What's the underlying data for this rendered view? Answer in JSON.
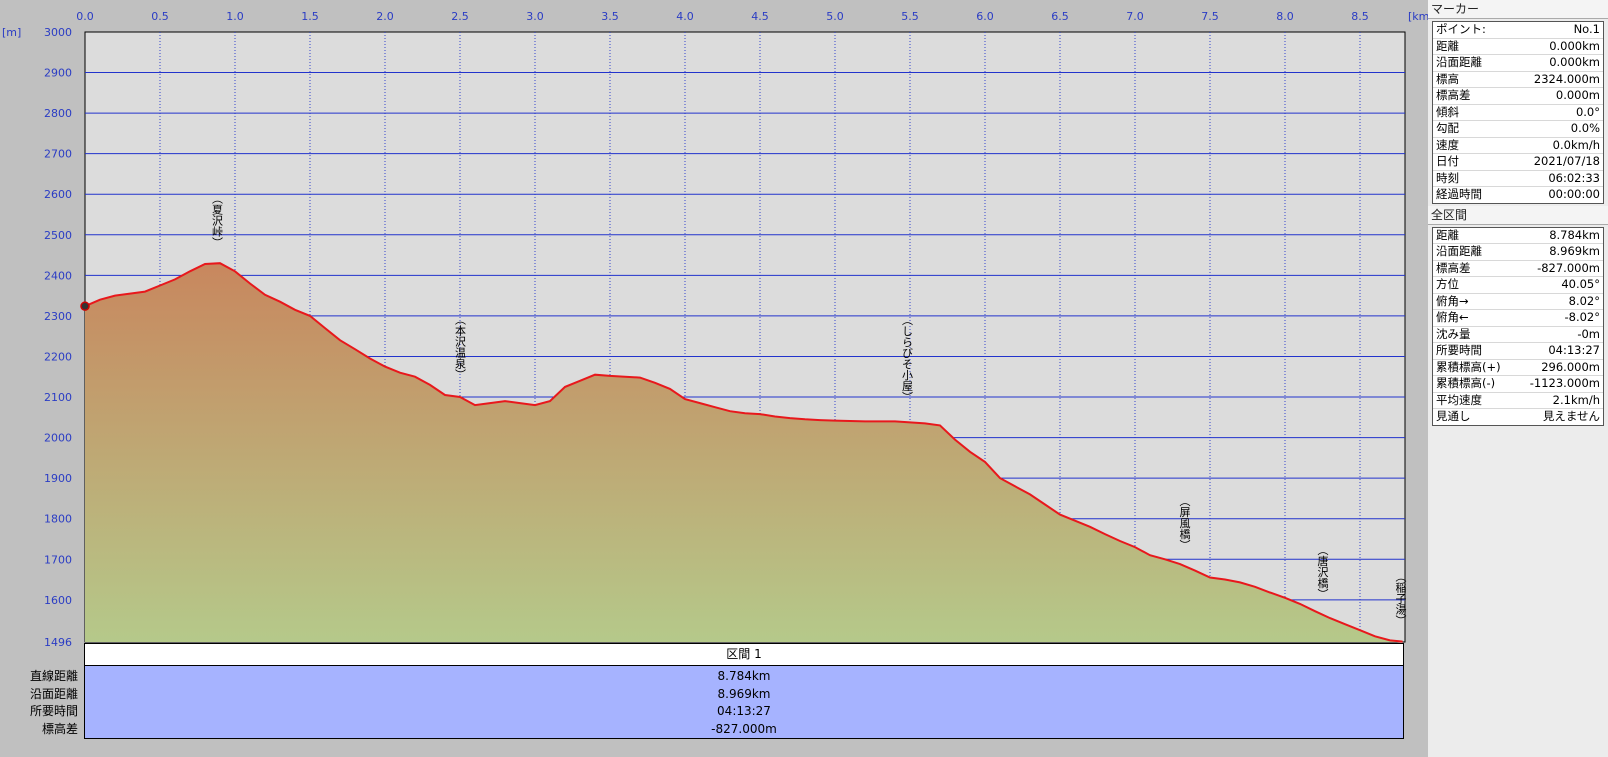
{
  "chart_data": {
    "type": "area",
    "x_unit": "[km]",
    "y_unit": "[m]",
    "xlim": [
      0,
      8.8
    ],
    "ylim": [
      1496,
      3000
    ],
    "x_ticks": [
      "0.0",
      "0.5",
      "1.0",
      "1.5",
      "2.0",
      "2.5",
      "3.0",
      "3.5",
      "4.0",
      "4.5",
      "5.0",
      "5.5",
      "6.0",
      "6.5",
      "7.0",
      "7.5",
      "8.0",
      "8.5"
    ],
    "y_ticks": [
      "3000",
      "2900",
      "2800",
      "2700",
      "2600",
      "2500",
      "2400",
      "2300",
      "2200",
      "2100",
      "2000",
      "1900",
      "1800",
      "1700",
      "1600",
      "1496"
    ],
    "grid": true,
    "series": [
      {
        "x": [
          0.0,
          0.1,
          0.2,
          0.3,
          0.4,
          0.5,
          0.6,
          0.7,
          0.8,
          0.9,
          1.0,
          1.1,
          1.2,
          1.3,
          1.4,
          1.5,
          1.6,
          1.7,
          1.8,
          1.9,
          2.0,
          2.1,
          2.2,
          2.3,
          2.4,
          2.5,
          2.6,
          2.7,
          2.8,
          2.9,
          3.0,
          3.1,
          3.2,
          3.3,
          3.4,
          3.5,
          3.6,
          3.7,
          3.8,
          3.9,
          4.0,
          4.1,
          4.2,
          4.3,
          4.4,
          4.5,
          4.6,
          4.7,
          4.8,
          4.9,
          5.0,
          5.2,
          5.4,
          5.6,
          5.7,
          5.8,
          5.9,
          6.0,
          6.1,
          6.2,
          6.3,
          6.4,
          6.5,
          6.6,
          6.7,
          6.8,
          6.9,
          7.0,
          7.1,
          7.2,
          7.3,
          7.4,
          7.5,
          7.6,
          7.7,
          7.8,
          7.9,
          8.0,
          8.1,
          8.2,
          8.3,
          8.4,
          8.5,
          8.6,
          8.7,
          8.784
        ],
        "y": [
          2324,
          2340,
          2350,
          2355,
          2360,
          2375,
          2390,
          2410,
          2428,
          2430,
          2410,
          2380,
          2352,
          2335,
          2315,
          2300,
          2270,
          2240,
          2218,
          2195,
          2175,
          2160,
          2150,
          2130,
          2105,
          2100,
          2080,
          2085,
          2090,
          2085,
          2080,
          2090,
          2125,
          2140,
          2155,
          2152,
          2150,
          2148,
          2135,
          2120,
          2095,
          2085,
          2075,
          2065,
          2060,
          2058,
          2052,
          2048,
          2045,
          2043,
          2042,
          2040,
          2040,
          2035,
          2030,
          1995,
          1965,
          1940,
          1900,
          1880,
          1860,
          1835,
          1810,
          1795,
          1780,
          1762,
          1745,
          1730,
          1710,
          1700,
          1688,
          1672,
          1655,
          1650,
          1643,
          1632,
          1618,
          1605,
          1590,
          1572,
          1555,
          1540,
          1525,
          1510,
          1500,
          1497
        ],
        "line_color": "#e8181c",
        "fill_top_color": "#c8875e",
        "fill_bottom_color": "#b5c98a"
      }
    ],
    "landmarks": [
      {
        "label": "（夏沢峠）",
        "x": 0.88
      },
      {
        "label": "（本沢温泉）",
        "x": 2.5
      },
      {
        "label": "（しらびそ小屋）",
        "x": 5.48
      },
      {
        "label": "（屏風橋）",
        "x": 7.33
      },
      {
        "label": "（唐沢橋）",
        "x": 8.25
      },
      {
        "label": "（稲子湯）",
        "x": 8.77
      }
    ]
  },
  "section": {
    "header": "区間 1",
    "rows": [
      {
        "label": "直線距離",
        "value": "8.784km"
      },
      {
        "label": "沿面距離",
        "value": "8.969km"
      },
      {
        "label": "所要時間",
        "value": "04:13:27"
      },
      {
        "label": "標高差",
        "value": "-827.000m"
      }
    ]
  },
  "marker_panel": {
    "title": "マーカー",
    "rows": [
      {
        "label": "ポイント:",
        "value": "No.1"
      },
      {
        "label": "距離",
        "value": "0.000km"
      },
      {
        "label": "沿面距離",
        "value": "0.000km"
      },
      {
        "label": "標高",
        "value": "2324.000m"
      },
      {
        "label": "標高差",
        "value": "0.000m"
      },
      {
        "label": "傾斜",
        "value": "0.0°"
      },
      {
        "label": "勾配",
        "value": "0.0%"
      },
      {
        "label": "速度",
        "value": "0.0km/h"
      },
      {
        "label": "日付",
        "value": "2021/07/18"
      },
      {
        "label": "時刻",
        "value": "06:02:33"
      },
      {
        "label": "経過時間",
        "value": "00:00:00"
      }
    ]
  },
  "total_panel": {
    "title": "全区間",
    "rows": [
      {
        "label": "距離",
        "value": "8.784km"
      },
      {
        "label": "沿面距離",
        "value": "8.969km"
      },
      {
        "label": "標高差",
        "value": "-827.000m"
      },
      {
        "label": "方位",
        "value": "40.05°"
      },
      {
        "label": "俯角→",
        "value": "8.02°"
      },
      {
        "label": "俯角←",
        "value": "-8.02°"
      },
      {
        "label": "沈み量",
        "value": "-0m"
      },
      {
        "label": "所要時間",
        "value": "04:13:27"
      },
      {
        "label": "累積標高(+)",
        "value": "296.000m"
      },
      {
        "label": "累積標高(-)",
        "value": "-1123.000m"
      },
      {
        "label": "平均速度",
        "value": "2.1km/h"
      },
      {
        "label": "見通し",
        "value": "見えません"
      }
    ]
  }
}
